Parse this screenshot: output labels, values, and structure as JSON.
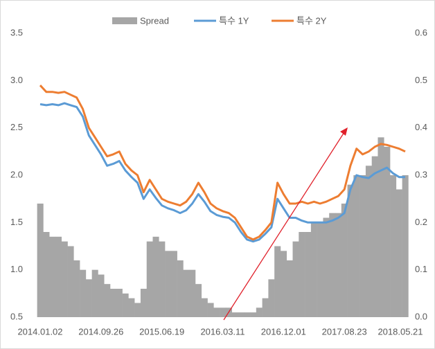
{
  "chart_data": {
    "type": "combo",
    "categories": [
      "2014.01.02",
      null,
      null,
      null,
      null,
      null,
      null,
      null,
      null,
      null,
      "2014.09.26",
      null,
      null,
      null,
      null,
      null,
      null,
      null,
      null,
      null,
      "2015.06.19",
      null,
      null,
      null,
      null,
      null,
      null,
      null,
      null,
      null,
      "2016.03.11",
      null,
      null,
      null,
      null,
      null,
      null,
      null,
      null,
      null,
      "2016.12.01",
      null,
      null,
      null,
      null,
      null,
      null,
      null,
      null,
      null,
      "2017.08.23",
      null,
      null,
      null,
      null,
      null,
      null,
      null,
      null,
      null,
      "2018.05.21"
    ],
    "series": [
      {
        "name": "Spread",
        "type": "bar",
        "axis": "y2",
        "color": "#a6a6a6",
        "values": [
          0.24,
          0.18,
          0.17,
          0.17,
          0.16,
          0.15,
          0.12,
          0.1,
          0.08,
          0.1,
          0.09,
          0.07,
          0.06,
          0.06,
          0.05,
          0.04,
          0.03,
          0.06,
          0.16,
          0.17,
          0.16,
          0.14,
          0.14,
          0.12,
          0.1,
          0.1,
          0.07,
          0.04,
          0.03,
          0.02,
          0.02,
          0.02,
          0.01,
          0.01,
          0.01,
          0.01,
          0.02,
          0.04,
          0.08,
          0.15,
          0.14,
          0.12,
          0.16,
          0.18,
          0.18,
          0.2,
          0.2,
          0.21,
          0.22,
          0.22,
          0.24,
          0.28,
          0.3,
          0.3,
          0.32,
          0.34,
          0.38,
          0.36,
          0.3,
          0.27,
          0.3
        ]
      },
      {
        "name": "특수 1Y",
        "type": "line",
        "color": "#5b9bd5",
        "values": [
          2.75,
          2.74,
          2.75,
          2.74,
          2.76,
          2.74,
          2.72,
          2.62,
          2.42,
          2.32,
          2.22,
          2.1,
          2.12,
          2.15,
          2.05,
          1.98,
          1.92,
          1.75,
          1.85,
          1.76,
          1.68,
          1.65,
          1.63,
          1.6,
          1.63,
          1.7,
          1.8,
          1.72,
          1.62,
          1.58,
          1.56,
          1.55,
          1.5,
          1.4,
          1.32,
          1.3,
          1.32,
          1.38,
          1.45,
          1.75,
          1.65,
          1.55,
          1.55,
          1.52,
          1.5,
          1.5,
          1.5,
          1.5,
          1.52,
          1.55,
          1.6,
          1.85,
          2.0,
          1.98,
          1.97,
          2.02,
          2.05,
          2.08,
          2.02,
          1.98,
          1.98
        ]
      },
      {
        "name": "특수 2Y",
        "type": "line",
        "color": "#ed7d31",
        "values": [
          2.95,
          2.88,
          2.88,
          2.87,
          2.88,
          2.85,
          2.82,
          2.7,
          2.5,
          2.4,
          2.3,
          2.2,
          2.22,
          2.25,
          2.12,
          2.05,
          2.0,
          1.82,
          1.95,
          1.85,
          1.75,
          1.72,
          1.7,
          1.68,
          1.72,
          1.8,
          1.92,
          1.82,
          1.7,
          1.65,
          1.62,
          1.6,
          1.55,
          1.45,
          1.35,
          1.32,
          1.35,
          1.42,
          1.5,
          1.92,
          1.8,
          1.7,
          1.7,
          1.72,
          1.7,
          1.72,
          1.7,
          1.72,
          1.75,
          1.78,
          1.85,
          2.1,
          2.28,
          2.22,
          2.25,
          2.3,
          2.33,
          2.32,
          2.3,
          2.28,
          2.25
        ]
      }
    ],
    "ylim": [
      0.5,
      3.5
    ],
    "yticks": [
      0.5,
      1.0,
      1.5,
      2.0,
      2.5,
      3.0,
      3.5
    ],
    "y2lim": [
      0.0,
      0.6
    ],
    "y2ticks": [
      0.0,
      0.1,
      0.2,
      0.3,
      0.4,
      0.5,
      0.6
    ],
    "legend": "top",
    "grid": false
  }
}
